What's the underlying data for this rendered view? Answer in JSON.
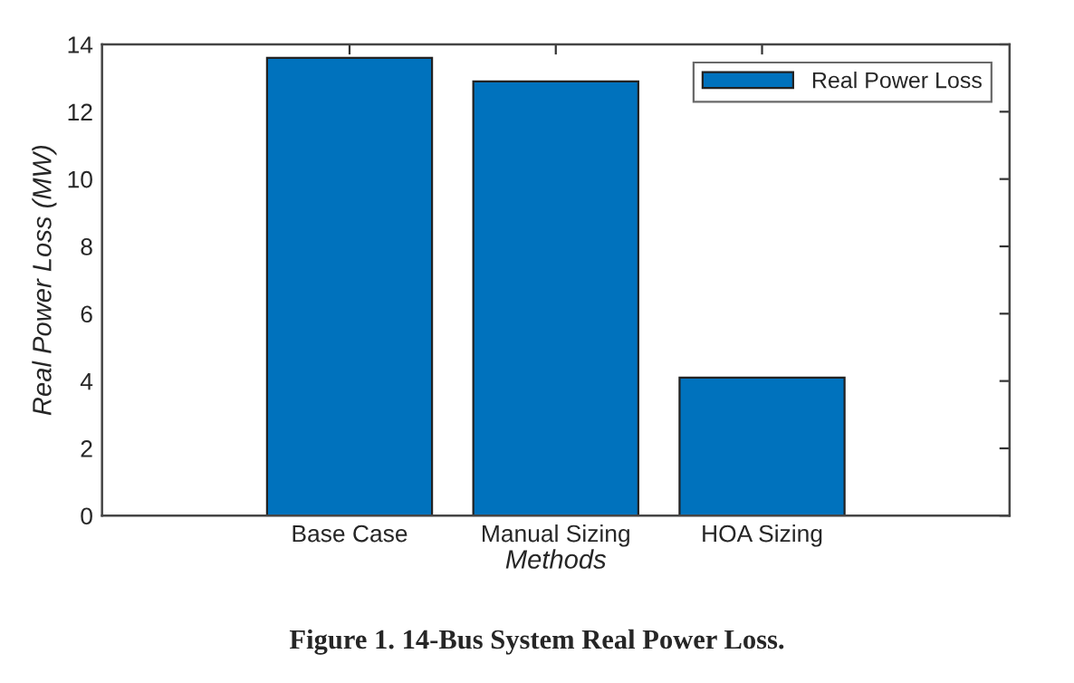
{
  "chart_data": {
    "type": "bar",
    "title": "Figure 1. 14-Bus System Real Power Loss.",
    "xlabel": "Methods",
    "ylabel": "Real Power Loss (MW)",
    "categories": [
      "Base Case",
      "Manual Sizing",
      "HOA Sizing"
    ],
    "series": [
      {
        "name": "Real Power Loss",
        "color": "#0072bd",
        "values": [
          13.6,
          12.9,
          4.1
        ]
      }
    ],
    "ylim": [
      0,
      14
    ],
    "yticks": [
      0,
      2,
      4,
      6,
      8,
      10,
      12,
      14
    ],
    "grid": false,
    "legend": "top right"
  }
}
